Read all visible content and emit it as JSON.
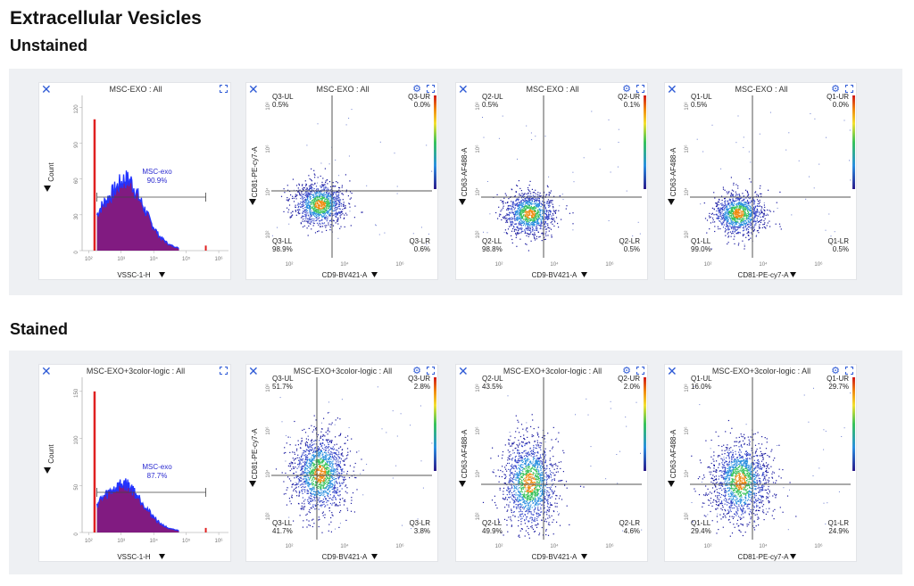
{
  "page": {
    "title": "Extracellular Vesicles",
    "sections": [
      "Unstained",
      "Stained"
    ]
  },
  "colors": {
    "panel_background": "#eef0f3",
    "accent_blue": "#2f5bd6",
    "histogram_fill": "#7a0f7a",
    "histogram_outline": "#2233ff",
    "histogram_spike": "#e02020",
    "gate_text": "#2a2ad0",
    "quadrant_lines": "#555555"
  },
  "icons": {
    "close": "close-icon",
    "settings": "gear-icon",
    "expand": "expand-icon",
    "axis_dropdown": "triangle-down-icon"
  },
  "chart_data": [
    {
      "section": "Unstained",
      "type": "histogram",
      "title": "MSC-EXO : All",
      "xlabel": "VSSC-1-H",
      "ylabel": "Count",
      "x_scale": "log",
      "x_ticks": [
        "10²",
        "10³",
        "10⁴",
        "10⁵",
        "10⁶"
      ],
      "y_ticks": [
        0,
        30,
        60,
        90,
        120
      ],
      "ylim": [
        0,
        130
      ],
      "gate": {
        "name": "MSC-exo",
        "percent": "90.9%",
        "x_range": [
          180,
          400000
        ]
      },
      "bins": [
        {
          "x": 150,
          "count": 110
        },
        {
          "x": 180,
          "count": 30
        },
        {
          "x": 220,
          "count": 35
        },
        {
          "x": 300,
          "count": 40
        },
        {
          "x": 400,
          "count": 44
        },
        {
          "x": 600,
          "count": 50
        },
        {
          "x": 900,
          "count": 56
        },
        {
          "x": 1300,
          "count": 60
        },
        {
          "x": 2000,
          "count": 58
        },
        {
          "x": 3000,
          "count": 48
        },
        {
          "x": 5000,
          "count": 36
        },
        {
          "x": 8000,
          "count": 24
        },
        {
          "x": 15000,
          "count": 12
        },
        {
          "x": 30000,
          "count": 5
        },
        {
          "x": 60000,
          "count": 2
        },
        {
          "x": 400000,
          "count": 2
        }
      ]
    },
    {
      "section": "Unstained",
      "type": "scatter",
      "title": "MSC-EXO : All",
      "xlabel": "CD9-BV421-A",
      "ylabel": "CD81-PE-cy7-A",
      "x_scale": "log",
      "y_scale": "log",
      "x_ticks": [
        "10²",
        "10⁴",
        "10⁶"
      ],
      "y_ticks": [
        "10²",
        "10⁴",
        "10⁶",
        "10⁸"
      ],
      "quadrants": {
        "UL": "Q3-UL",
        "UR": "Q3-UR",
        "LL": "Q3-LL",
        "LR": "Q3-LR"
      },
      "percentages": {
        "UL": "0.5%",
        "UR": "0.0%",
        "LL": "98.9%",
        "LR": "0.6%"
      }
    },
    {
      "section": "Unstained",
      "type": "scatter",
      "title": "MSC-EXO : All",
      "xlabel": "CD9-BV421-A",
      "ylabel": "CD63-AF488-A",
      "x_scale": "log",
      "y_scale": "log",
      "x_ticks": [
        "10²",
        "10⁴",
        "10⁶"
      ],
      "y_ticks": [
        "10²",
        "10⁴",
        "10⁶",
        "10⁸"
      ],
      "quadrants": {
        "UL": "Q2-UL",
        "UR": "Q2-UR",
        "LL": "Q2-LL",
        "LR": "Q2-LR"
      },
      "percentages": {
        "UL": "0.5%",
        "UR": "0.1%",
        "LL": "98.8%",
        "LR": "0.5%"
      }
    },
    {
      "section": "Unstained",
      "type": "scatter",
      "title": "MSC-EXO : All",
      "xlabel": "CD81-PE-cy7-A",
      "ylabel": "CD63-AF488-A",
      "x_scale": "log",
      "y_scale": "log",
      "x_ticks": [
        "10²",
        "10⁴",
        "10⁶"
      ],
      "y_ticks": [
        "10²",
        "10⁴",
        "10⁶",
        "10⁸"
      ],
      "quadrants": {
        "UL": "Q1-UL",
        "UR": "Q1-UR",
        "LL": "Q1-LL",
        "LR": "Q1-LR"
      },
      "percentages": {
        "UL": "0.5%",
        "UR": "0.0%",
        "LL": "99.0%",
        "LR": "0.5%"
      }
    },
    {
      "section": "Stained",
      "type": "histogram",
      "title": "MSC-EXO+3color-logic : All",
      "xlabel": "VSSC-1-H",
      "ylabel": "Count",
      "x_scale": "log",
      "x_ticks": [
        "10²",
        "10³",
        "10⁴",
        "10⁵",
        "10⁶"
      ],
      "y_ticks": [
        0,
        50,
        100,
        150
      ],
      "ylim": [
        0,
        165
      ],
      "gate": {
        "name": "MSC-exo",
        "percent": "87.7%",
        "x_range": [
          180,
          400000
        ]
      },
      "bins": [
        {
          "x": 150,
          "count": 150
        },
        {
          "x": 180,
          "count": 30
        },
        {
          "x": 220,
          "count": 34
        },
        {
          "x": 300,
          "count": 38
        },
        {
          "x": 400,
          "count": 42
        },
        {
          "x": 600,
          "count": 46
        },
        {
          "x": 900,
          "count": 50
        },
        {
          "x": 1300,
          "count": 52
        },
        {
          "x": 2000,
          "count": 48
        },
        {
          "x": 3000,
          "count": 40
        },
        {
          "x": 5000,
          "count": 30
        },
        {
          "x": 8000,
          "count": 20
        },
        {
          "x": 15000,
          "count": 10
        },
        {
          "x": 30000,
          "count": 4
        },
        {
          "x": 60000,
          "count": 2
        },
        {
          "x": 400000,
          "count": 2
        }
      ]
    },
    {
      "section": "Stained",
      "type": "scatter",
      "title": "MSC-EXO+3color-logic : All",
      "xlabel": "CD9-BV421-A",
      "ylabel": "CD81-PE-cy7-A",
      "x_scale": "log",
      "y_scale": "log",
      "x_ticks": [
        "10²",
        "10⁴",
        "10⁶"
      ],
      "y_ticks": [
        "10²",
        "10⁴",
        "10⁶",
        "10⁸"
      ],
      "quadrants": {
        "UL": "Q3-UL",
        "UR": "Q3-UR",
        "LL": "Q3-LL",
        "LR": "Q3-LR"
      },
      "percentages": {
        "UL": "51.7%",
        "UR": "2.8%",
        "LL": "41.7%",
        "LR": "3.8%"
      }
    },
    {
      "section": "Stained",
      "type": "scatter",
      "title": "MSC-EXO+3color-logic : All",
      "xlabel": "CD9-BV421-A",
      "ylabel": "CD63-AF488-A",
      "x_scale": "log",
      "y_scale": "log",
      "x_ticks": [
        "10²",
        "10⁴",
        "10⁶"
      ],
      "y_ticks": [
        "10²",
        "10⁴",
        "10⁶",
        "10⁸"
      ],
      "quadrants": {
        "UL": "Q2-UL",
        "UR": "Q2-UR",
        "LL": "Q2-LL",
        "LR": "Q2-LR"
      },
      "percentages": {
        "UL": "43.5%",
        "UR": "2.0%",
        "LL": "49.9%",
        "LR": "4.6%"
      }
    },
    {
      "section": "Stained",
      "type": "scatter",
      "title": "MSC-EXO+3color-logic : All",
      "xlabel": "CD81-PE-cy7-A",
      "ylabel": "CD63-AF488-A",
      "x_scale": "log",
      "y_scale": "log",
      "x_ticks": [
        "10²",
        "10⁴",
        "10⁶"
      ],
      "y_ticks": [
        "10²",
        "10⁴",
        "10⁶",
        "10⁸"
      ],
      "quadrants": {
        "UL": "Q1-UL",
        "UR": "Q1-UR",
        "LL": "Q1-LL",
        "LR": "Q1-LR"
      },
      "percentages": {
        "UL": "16.0%",
        "UR": "29.7%",
        "LL": "29.4%",
        "LR": "24.9%"
      }
    }
  ]
}
